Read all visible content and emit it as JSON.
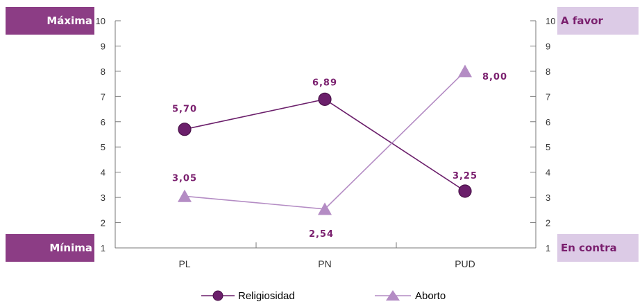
{
  "colors": {
    "religiosidad": "#6b1f6b",
    "aborto": "#b48cc4",
    "box_left": "#8c3d85",
    "box_right": "#dccbe6",
    "axis": "#777777",
    "label": "#7a1f6e"
  },
  "boxes": {
    "left_top": "Máxima",
    "left_bottom": "Mínima",
    "right_top": "A favor",
    "right_bottom": "En contra"
  },
  "chart_data": {
    "type": "line",
    "categories": [
      "PL",
      "PN",
      "PUD"
    ],
    "ylim": [
      1,
      10
    ],
    "y_ticks": [
      1,
      2,
      3,
      4,
      5,
      6,
      7,
      8,
      9,
      10
    ],
    "y2lim": [
      1,
      10
    ],
    "grid": false,
    "legend_position": "bottom",
    "series": [
      {
        "name": "Religiosidad",
        "values": [
          5.7,
          6.89,
          3.25
        ],
        "labels": [
          "5,70",
          "6,89",
          "3,25"
        ],
        "marker": "circle",
        "axis": "left"
      },
      {
        "name": "Aborto",
        "values": [
          3.05,
          2.54,
          8.0
        ],
        "labels": [
          "3,05",
          "2,54",
          "8,00"
        ],
        "marker": "triangle",
        "axis": "right"
      }
    ]
  }
}
